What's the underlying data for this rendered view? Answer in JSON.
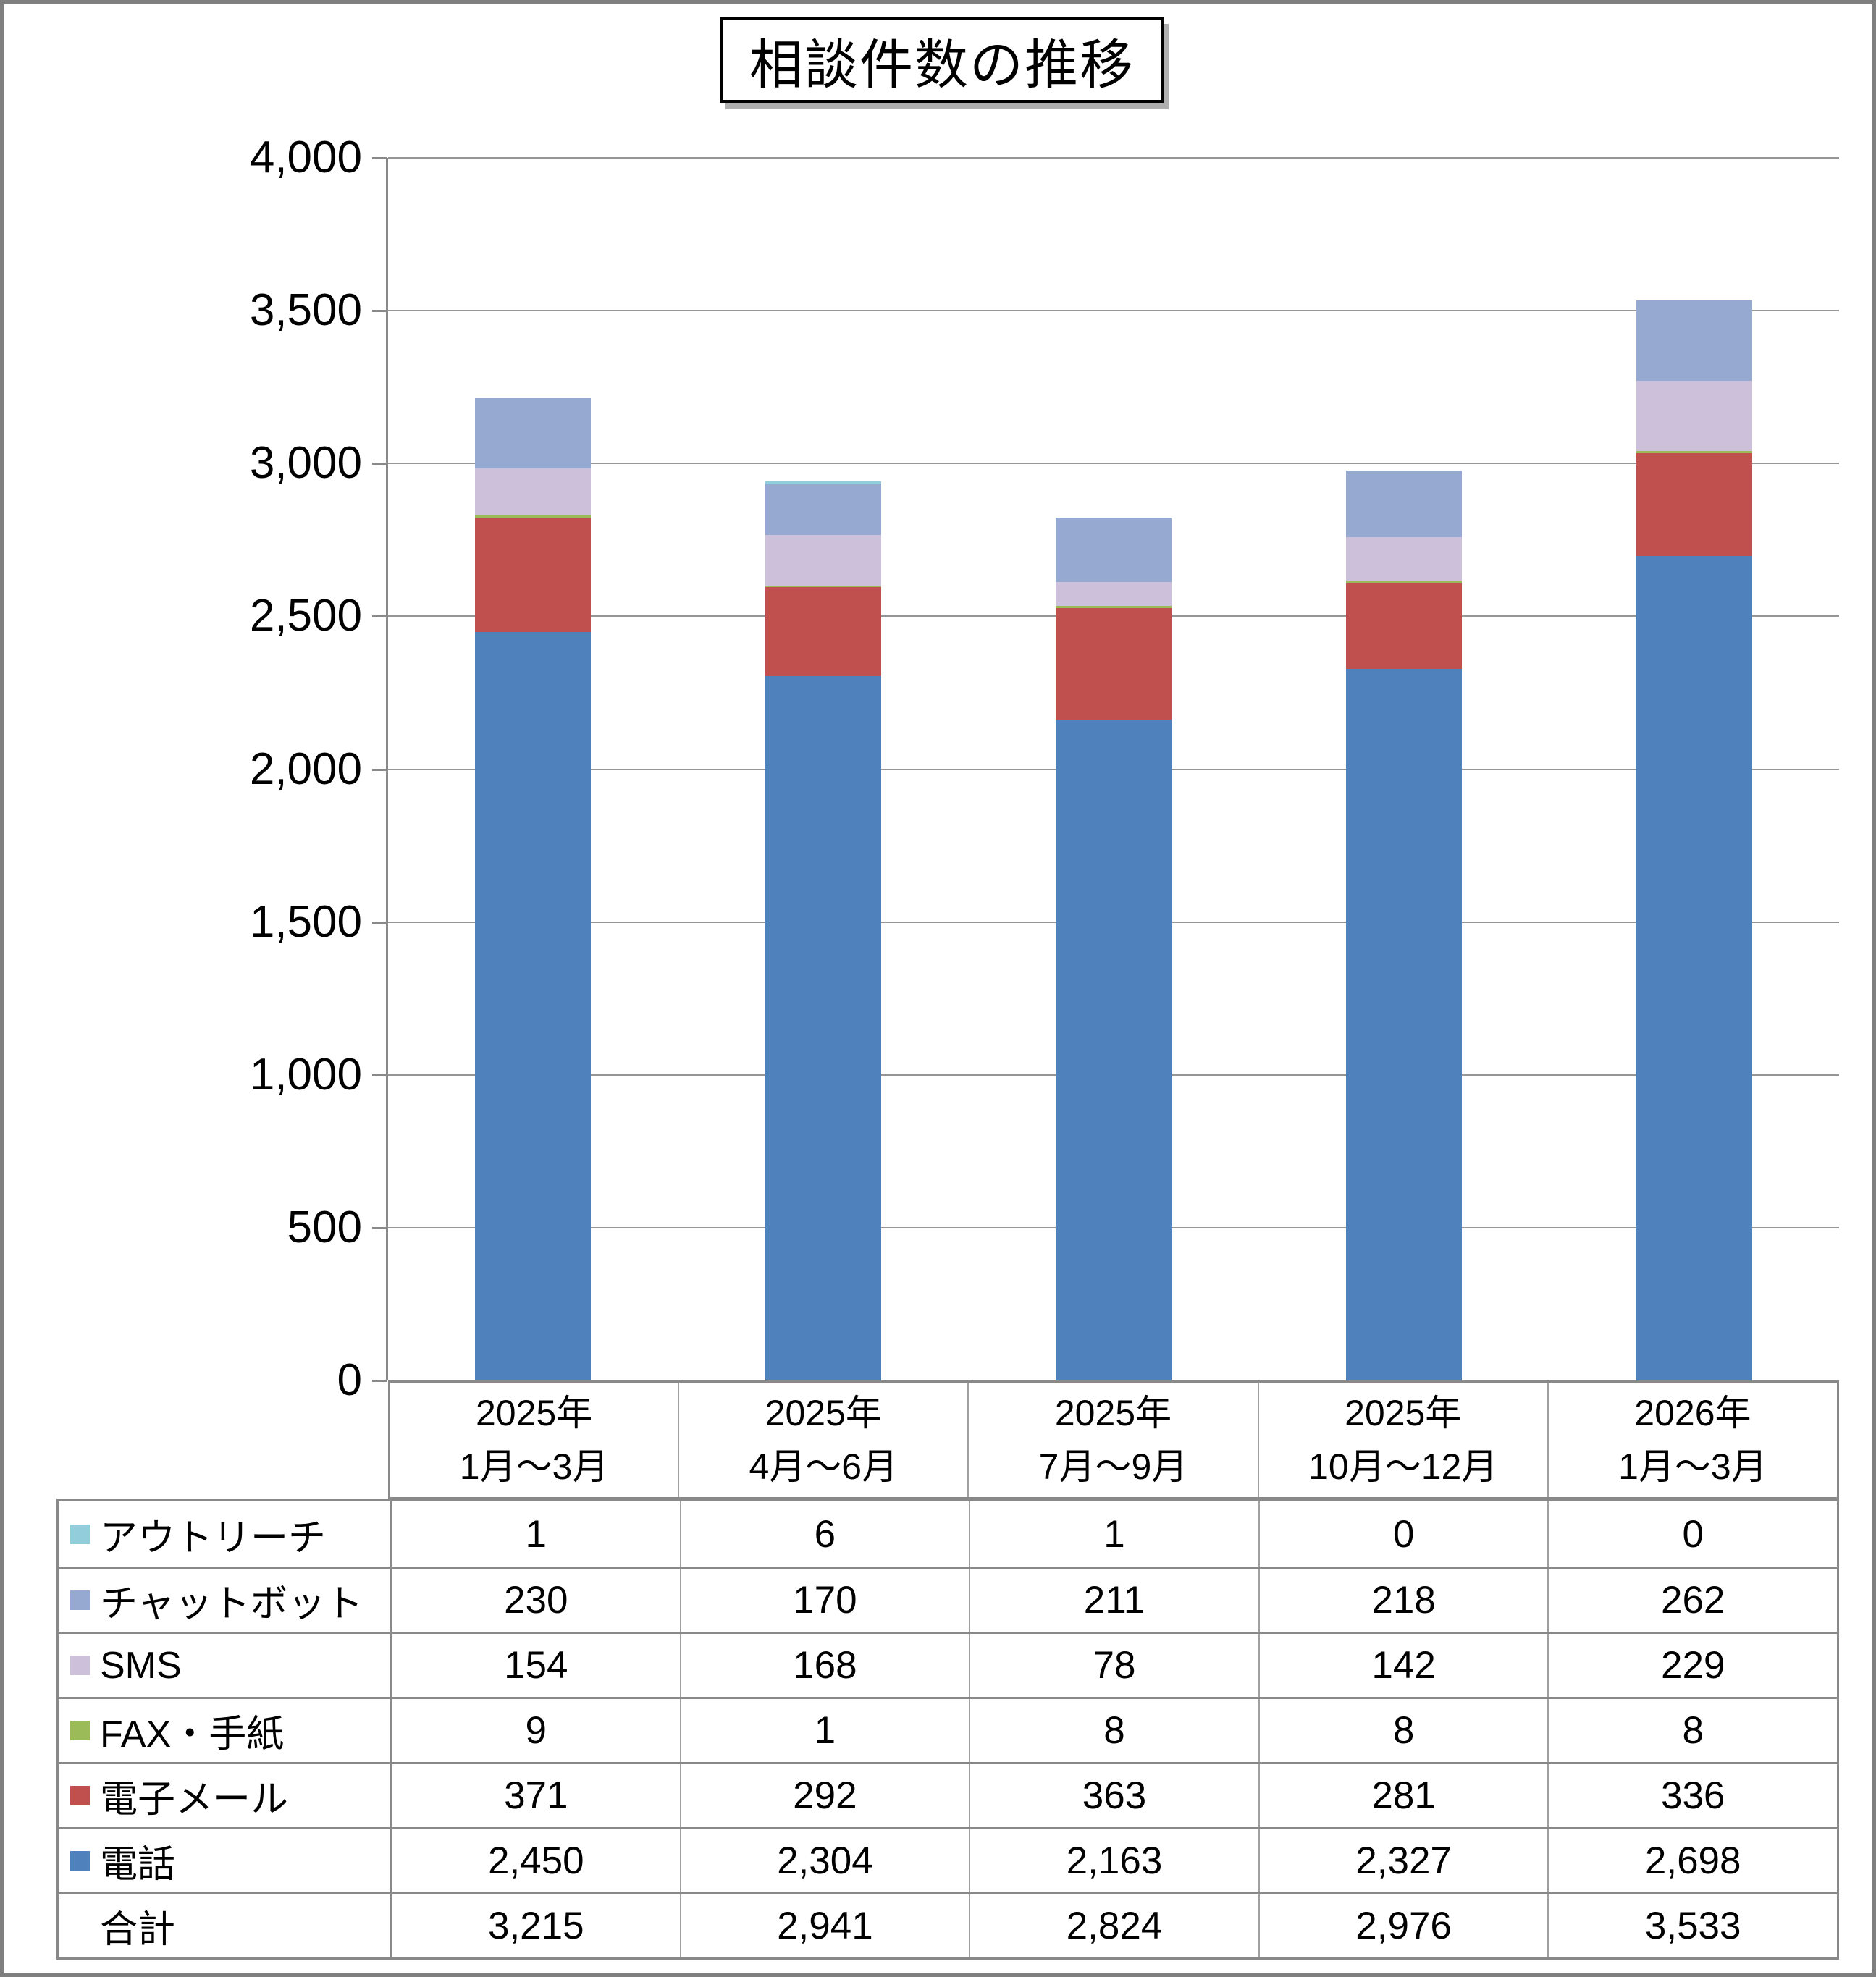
{
  "page": {
    "background": "#FFFFFF",
    "frame_border_color": "#7F7F7F",
    "grid_color": "#969696",
    "axis_color": "#898989",
    "table_border_color": "#898989"
  },
  "chart_data": {
    "type": "bar",
    "stacked": true,
    "title": "相談件数の推移",
    "categories": [
      [
        "2025年",
        "1月〜3月"
      ],
      [
        "2025年",
        "4月〜6月"
      ],
      [
        "2025年",
        "7月〜9月"
      ],
      [
        "2025年",
        "10月〜12月"
      ],
      [
        "2026年",
        "1月〜3月"
      ]
    ],
    "series_bottom_to_top": [
      {
        "name": "電話",
        "color": "#4F81BD",
        "values": [
          2450,
          2304,
          2163,
          2327,
          2698
        ]
      },
      {
        "name": "電子メール",
        "color": "#C0504D",
        "values": [
          371,
          292,
          363,
          281,
          336
        ]
      },
      {
        "name": "FAX・手紙",
        "color": "#9BBB59",
        "values": [
          9,
          1,
          8,
          8,
          8
        ]
      },
      {
        "name": "SMS",
        "color": "#CCC0DA",
        "values": [
          154,
          168,
          78,
          142,
          229
        ]
      },
      {
        "name": "チャットボット",
        "color": "#95A9D1",
        "values": [
          230,
          170,
          211,
          218,
          262
        ]
      },
      {
        "name": "アウトリーチ",
        "color": "#92CDDC",
        "values": [
          1,
          6,
          1,
          0,
          0
        ]
      }
    ],
    "table_row_order_top_to_bottom": [
      "アウトリーチ",
      "チャットボット",
      "SMS",
      "FAX・手紙",
      "電子メール",
      "電話"
    ],
    "totals_row": {
      "label": "合計",
      "values": [
        3215,
        2941,
        2824,
        2976,
        3533
      ]
    },
    "y_axis": {
      "min": 0,
      "max": 4000,
      "step": 500,
      "tick_labels": [
        "4,000",
        "3,500",
        "3,000",
        "2,500",
        "2,000",
        "1,500",
        "1,000",
        "500",
        "0"
      ]
    },
    "grid": true,
    "legend_position": "table-left"
  }
}
